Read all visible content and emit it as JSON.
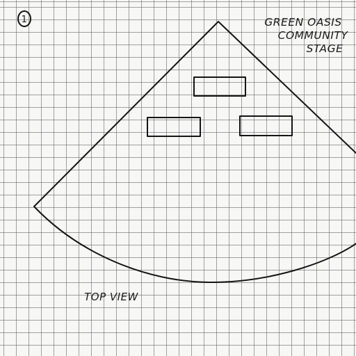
{
  "sheet": {
    "page_number": "1",
    "title_lines": [
      "GREEN OASIS",
      "COMMUNITY",
      "STAGE"
    ],
    "view_label": "TOP VIEW"
  },
  "colors": {
    "ink": "#141414",
    "paper": "#f7f7f6",
    "grid": "#5a5a5f"
  }
}
